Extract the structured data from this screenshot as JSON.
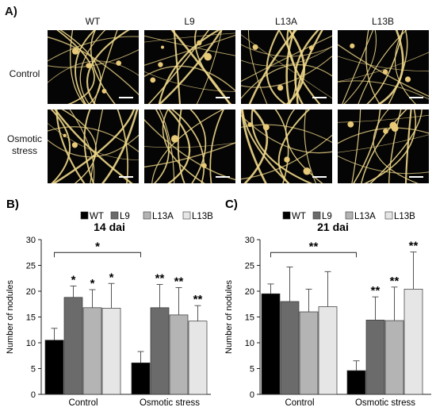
{
  "panel_a": {
    "label": "A)",
    "columns": [
      "WT",
      "L9",
      "L13A",
      "L13B"
    ],
    "rows": [
      [
        "Control"
      ],
      [
        "Osmotic",
        "stress"
      ]
    ]
  },
  "colors": {
    "WT": "#000000",
    "L9": "#6b6b6b",
    "L13A": "#b4b4b4",
    "L13B": "#e6e6e6",
    "root": "#f0d88a",
    "photo_bg": "#050505"
  },
  "chart_data": [
    {
      "panel_label": "B)",
      "type": "bar",
      "title": "14 dai",
      "ylabel": "Number of nodules",
      "xlabel": "",
      "ylim": [
        0,
        30
      ],
      "yticks": [
        0,
        5,
        10,
        15,
        20,
        25,
        30
      ],
      "categories": [
        "Control",
        "Osmotic stress"
      ],
      "legend_position": "top",
      "grid": false,
      "series": [
        {
          "name": "WT",
          "values": [
            10.5,
            6.1
          ],
          "errors": [
            2.3,
            2.2
          ],
          "annotations": [
            "",
            ""
          ]
        },
        {
          "name": "L9",
          "values": [
            18.8,
            16.8
          ],
          "errors": [
            2.2,
            4.5
          ],
          "annotations": [
            "*",
            "**"
          ]
        },
        {
          "name": "L13A",
          "values": [
            16.8,
            15.4
          ],
          "errors": [
            3.5,
            5.3
          ],
          "annotations": [
            "*",
            "**"
          ]
        },
        {
          "name": "L13B",
          "values": [
            16.7,
            14.2
          ],
          "errors": [
            4.8,
            3.0
          ],
          "annotations": [
            "*",
            "**"
          ]
        }
      ],
      "bracket": {
        "label": "*",
        "from_category": "Control",
        "to_category": "Osmotic stress",
        "y": 27.5
      }
    },
    {
      "panel_label": "C)",
      "type": "bar",
      "title": "21 dai",
      "ylabel": "Number of nodules",
      "xlabel": "",
      "ylim": [
        0,
        30
      ],
      "yticks": [
        0,
        5,
        10,
        15,
        20,
        25,
        30
      ],
      "categories": [
        "Control",
        "Osmotic stress"
      ],
      "legend_position": "top",
      "grid": false,
      "series": [
        {
          "name": "WT",
          "values": [
            19.5,
            4.6
          ],
          "errors": [
            1.9,
            1.9
          ],
          "annotations": [
            "",
            ""
          ]
        },
        {
          "name": "L9",
          "values": [
            18.0,
            14.4
          ],
          "errors": [
            6.7,
            4.5
          ],
          "annotations": [
            "",
            "**"
          ]
        },
        {
          "name": "L13A",
          "values": [
            16.0,
            14.3
          ],
          "errors": [
            4.4,
            6.5
          ],
          "annotations": [
            "",
            "**"
          ]
        },
        {
          "name": "L13B",
          "values": [
            17.0,
            20.4
          ],
          "errors": [
            6.8,
            7.2
          ],
          "annotations": [
            "",
            "**"
          ]
        }
      ],
      "bracket": {
        "label": "**",
        "from_category": "Control",
        "to_category": "Osmotic stress",
        "y": 27.5
      }
    }
  ]
}
